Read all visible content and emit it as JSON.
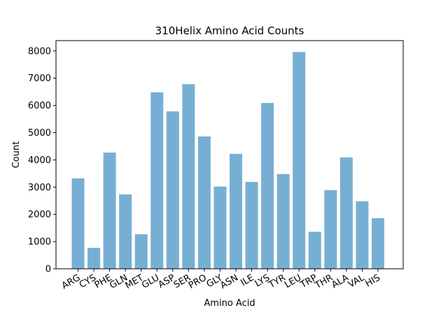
{
  "chart_data": {
    "type": "bar",
    "title": "310Helix Amino Acid Counts",
    "xlabel": "Amino Acid",
    "ylabel": "Count",
    "categories": [
      "ARG",
      "CYS",
      "PHE",
      "GLN",
      "MET",
      "GLU",
      "ASP",
      "SER",
      "PRO",
      "GLY",
      "ASN",
      "ILE",
      "LYS",
      "TYR",
      "LEU",
      "TRP",
      "THR",
      "ALA",
      "VAL",
      "HIS"
    ],
    "values": [
      3320,
      770,
      4270,
      2730,
      1270,
      6480,
      5780,
      6780,
      4860,
      3020,
      4220,
      3190,
      6090,
      3480,
      7960,
      1360,
      2890,
      4090,
      2480,
      1860
    ],
    "yticks": [
      0,
      1000,
      2000,
      3000,
      4000,
      5000,
      6000,
      7000,
      8000
    ],
    "ylim": [
      0,
      8380
    ],
    "bar_color": "#77afd4",
    "grid": false,
    "legend": "none"
  }
}
